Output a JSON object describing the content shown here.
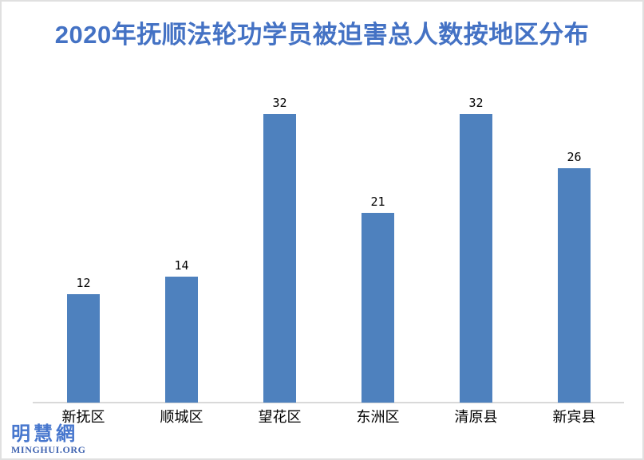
{
  "title": "2020年抚顺法轮功学员被迫害总人数按地区分布",
  "watermark": {
    "cn": "明慧網",
    "en": "MINGHUI.ORG"
  },
  "colors": {
    "background": "#FFFFFF",
    "border": "#E0E0E0",
    "title": "#4472C4",
    "bar": "#4E81BE",
    "label": "#000000",
    "axis_line": "#D9D9D9",
    "watermark_cn": "#4777CE",
    "watermark_en": "#3F63B0"
  },
  "chart_data": {
    "type": "bar",
    "title": "2020年抚顺法轮功学员被迫害总人数按地区分布",
    "categories": [
      "新抚区",
      "顺城区",
      "望花区",
      "东洲区",
      "清原县",
      "新宾县"
    ],
    "values": [
      12,
      14,
      32,
      21,
      32,
      26
    ],
    "data_labels": [
      12,
      14,
      32,
      21,
      32,
      26
    ],
    "xlabel": "",
    "ylabel": "",
    "ylim": [
      0,
      32
    ],
    "grid": false,
    "legend": false,
    "y_axis_visible": false,
    "bar_color": "#4E81BE",
    "data_label_position": "above-bar"
  }
}
